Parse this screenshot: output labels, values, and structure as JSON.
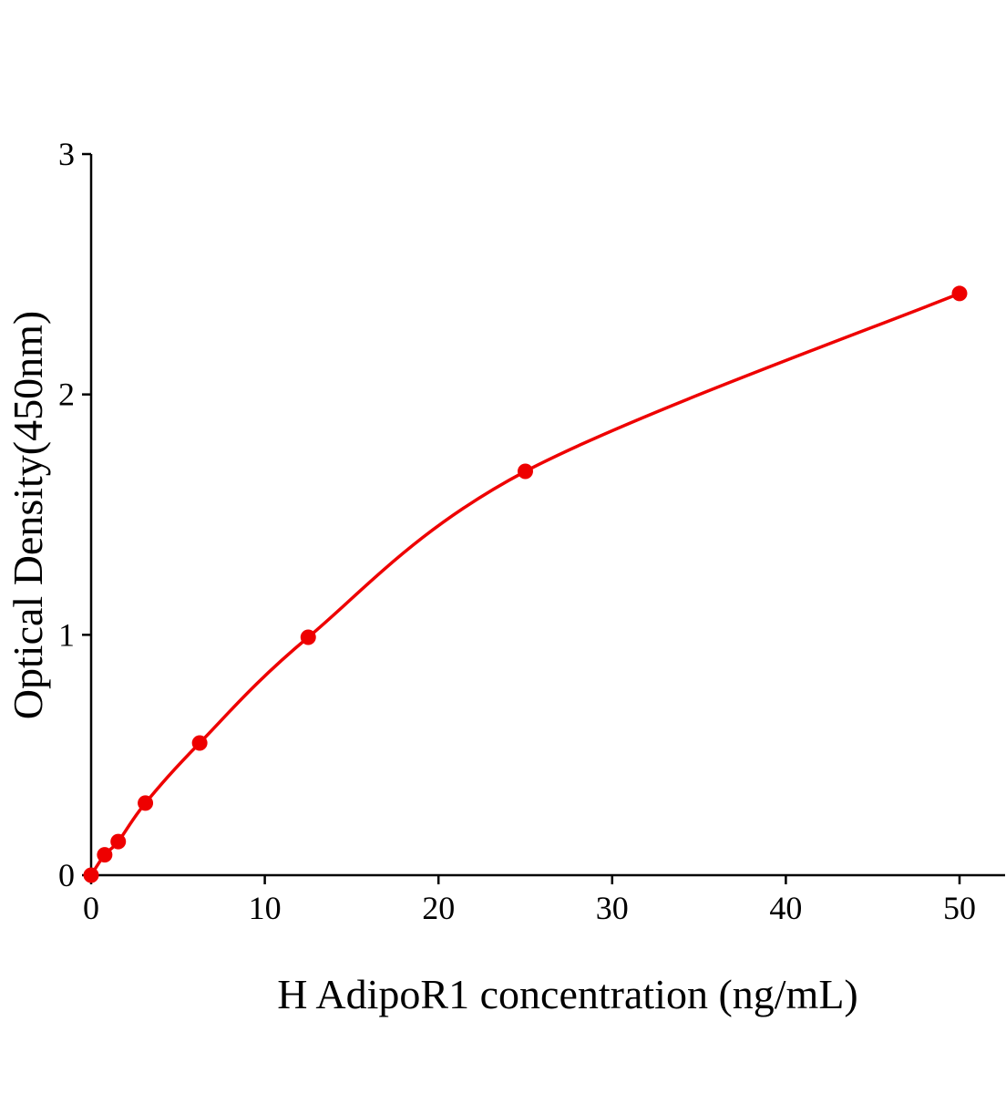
{
  "chart_data": {
    "type": "line",
    "title": "",
    "xlabel": "H AdipoR1 concentration (ng/mL)",
    "ylabel": "Optical Density(450nm)",
    "xlim": [
      0,
      50
    ],
    "ylim": [
      0,
      3
    ],
    "xticks": [
      0,
      10,
      20,
      30,
      40,
      50
    ],
    "yticks": [
      0,
      1,
      2,
      3
    ],
    "grid": false,
    "legend": "none",
    "color": "#ee0000",
    "series": [
      {
        "x": [
          0,
          0.78,
          1.56,
          3.125,
          6.25,
          12.5,
          25,
          50
        ],
        "y": [
          0,
          0.085,
          0.14,
          0.3,
          0.55,
          0.99,
          1.68,
          2.42
        ],
        "markers": true,
        "fitted_curve": true
      }
    ]
  }
}
